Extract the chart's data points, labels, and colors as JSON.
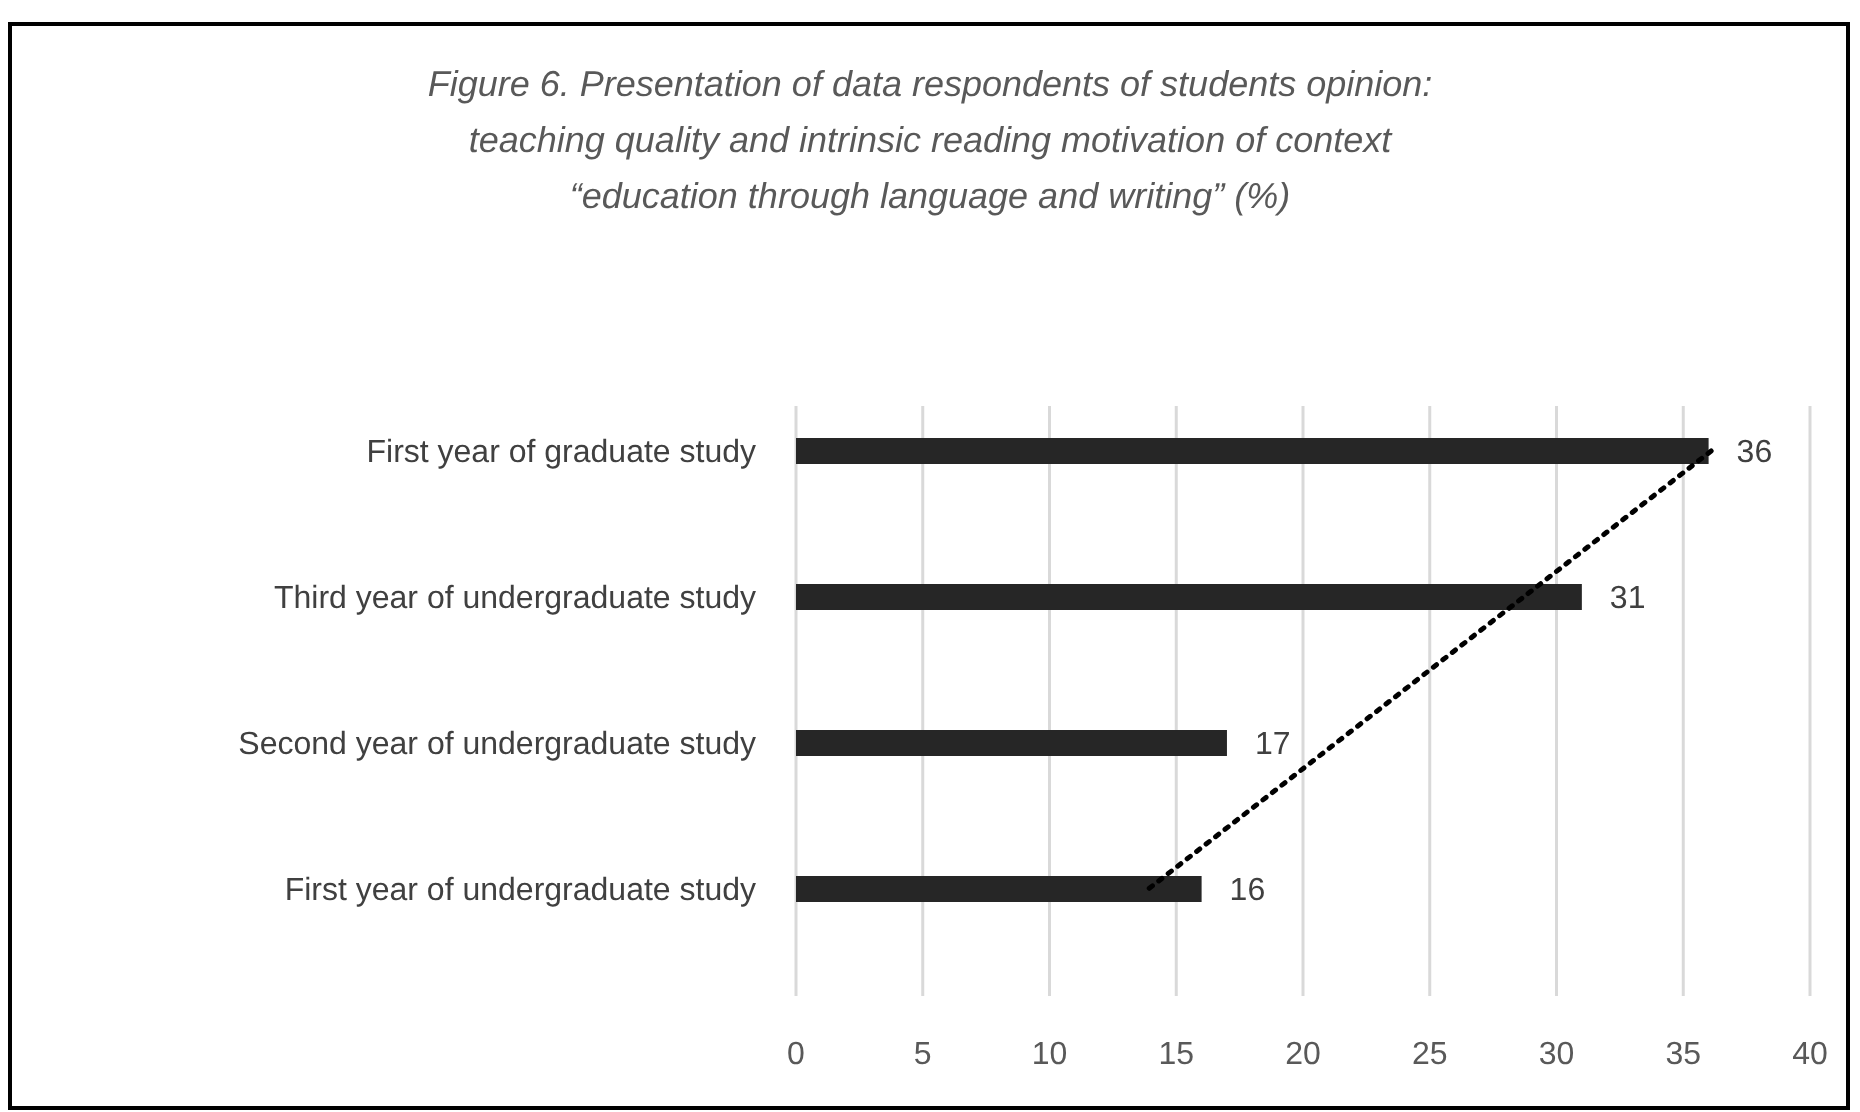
{
  "chart_data": {
    "type": "bar",
    "orientation": "horizontal",
    "title": "Figure 6. Presentation of data respondents of students opinion: teaching quality and intrinsic reading motivation of context “education through language and writing” (%)",
    "categories": [
      "First year of graduate study",
      "Third year of undergraduate study",
      "Second year of  undergraduate study",
      "First year of undergraduate study"
    ],
    "series": [
      {
        "color": "#262626",
        "values": [
          36,
          31,
          17,
          16
        ],
        "value_labels": [
          "36",
          "31",
          "17",
          "16"
        ]
      },
      {
        "type": "line",
        "color": "#000000",
        "line_style": "dotted",
        "values": [
          36.1,
          28.7,
          21.3,
          13.9
        ]
      }
    ],
    "xlim": [
      0,
      40
    ],
    "xticks": [
      0,
      5,
      10,
      15,
      20,
      25,
      30,
      35,
      40
    ],
    "grid": "x"
  }
}
